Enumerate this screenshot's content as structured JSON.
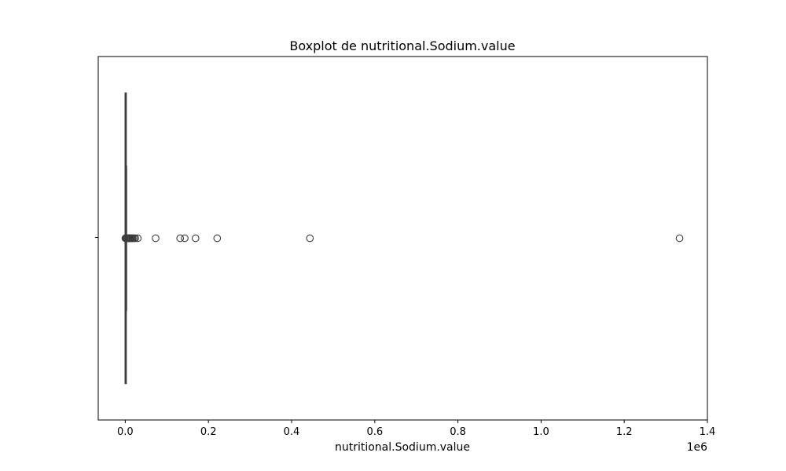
{
  "chart_data": {
    "type": "boxplot",
    "title": "Boxplot de nutritional.Sodium.value",
    "xlabel": "nutritional.Sodium.value",
    "ylabel": "",
    "x_offset_label": "1e6",
    "xlim": [
      -0.065,
      1.4
    ],
    "x_ticks": [
      0.0,
      0.2,
      0.4,
      0.6,
      0.8,
      1.0,
      1.2,
      1.4
    ],
    "x_tick_labels": [
      "0.0",
      "0.2",
      "0.4",
      "0.6",
      "0.8",
      "1.0",
      "1.2",
      "1.4"
    ],
    "grid": false,
    "box": {
      "q1": 0.0,
      "median": 0.0005,
      "q3": 0.0012,
      "whisker_low": 0.0,
      "whisker_high": 0.003
    },
    "outliers": [
      0.0003,
      0.0008,
      0.0015,
      0.002,
      0.003,
      0.0045,
      0.006,
      0.0075,
      0.009,
      0.0105,
      0.012,
      0.014,
      0.016,
      0.018,
      0.021,
      0.024,
      0.03,
      0.073,
      0.132,
      0.143,
      0.169,
      0.221,
      0.444,
      1.333
    ],
    "box_color": "#1f77b4",
    "line_color": "#3d3d3d"
  }
}
